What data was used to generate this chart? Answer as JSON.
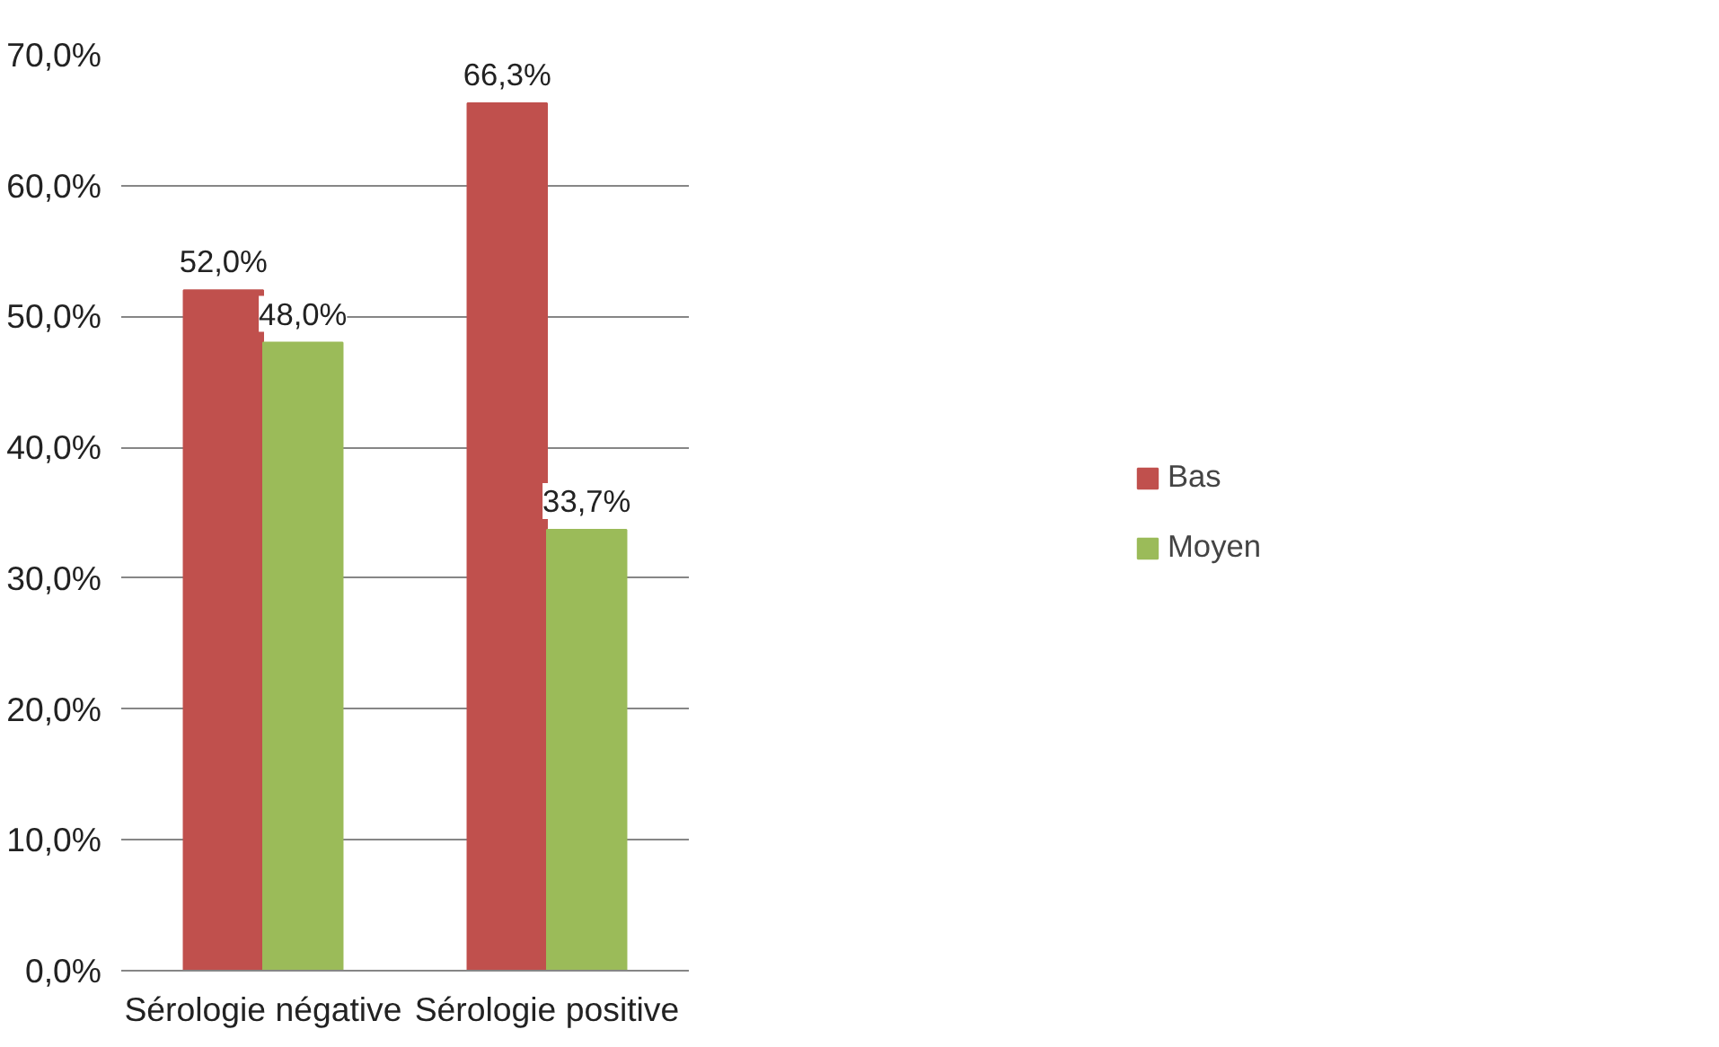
{
  "chart_data": {
    "type": "bar",
    "categories": [
      "Sérologie négative",
      "Sérologie positive"
    ],
    "series": [
      {
        "name": "Bas",
        "color": "#c0504d",
        "values": [
          52.0,
          66.3
        ],
        "value_labels": [
          "52,0%",
          "66,3%"
        ]
      },
      {
        "name": "Moyen",
        "color": "#9bbb59",
        "values": [
          48.0,
          33.7
        ],
        "value_labels": [
          "48,0%",
          "33,7%"
        ]
      }
    ],
    "ylim": [
      0,
      70
    ],
    "yticks": [
      {
        "value": 0,
        "label": "0,0%"
      },
      {
        "value": 10,
        "label": "10,0%"
      },
      {
        "value": 20,
        "label": "20,0%"
      },
      {
        "value": 30,
        "label": "30,0%"
      },
      {
        "value": 40,
        "label": "40,0%"
      },
      {
        "value": 50,
        "label": "50,0%"
      },
      {
        "value": 60,
        "label": "60,0%"
      },
      {
        "value": 70,
        "label": "70,0%"
      }
    ],
    "grid": "y",
    "legend": "right"
  }
}
